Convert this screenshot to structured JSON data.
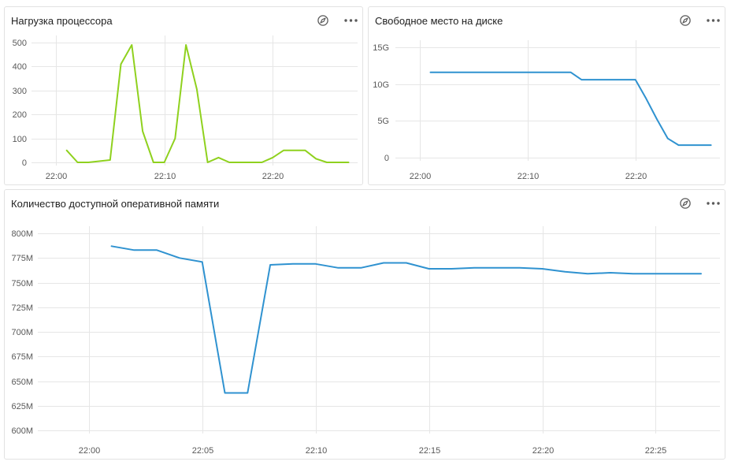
{
  "widget_header_icons": [
    "compass-icon",
    "more-icon"
  ],
  "chart_data": [
    {
      "type": "line",
      "title": "Нагрузка процессора",
      "grid": true,
      "x": [
        "22:01",
        "22:02",
        "22:03",
        "22:04",
        "22:05",
        "22:06",
        "22:07",
        "22:08",
        "22:09",
        "22:10",
        "22:11",
        "22:12",
        "22:13",
        "22:14",
        "22:15",
        "22:16",
        "22:17",
        "22:18",
        "22:19",
        "22:20",
        "22:21",
        "22:22",
        "22:23",
        "22:24",
        "22:25",
        "22:26",
        "22:27"
      ],
      "xlim": [
        "21:57:45",
        "22:27:50"
      ],
      "x_ticks": [
        "22:00",
        "22:10",
        "22:20"
      ],
      "ylim": [
        0,
        500
      ],
      "y_ticks": [
        {
          "value": 0,
          "label": "0"
        },
        {
          "value": 100,
          "label": "100"
        },
        {
          "value": 200,
          "label": "200"
        },
        {
          "value": 300,
          "label": "300"
        },
        {
          "value": 400,
          "label": "400"
        },
        {
          "value": 500,
          "label": "500"
        }
      ],
      "series": [
        {
          "color": "#8fd11e",
          "values": [
            50,
            0,
            0,
            5,
            10,
            410,
            490,
            130,
            0,
            0,
            100,
            490,
            305,
            0,
            20,
            0,
            0,
            0,
            0,
            20,
            50,
            50,
            50,
            15,
            0,
            0,
            0
          ]
        }
      ]
    },
    {
      "type": "line",
      "title": "Свободное место на диске",
      "grid": true,
      "x": [
        "22:01",
        "22:02",
        "22:03",
        "22:04",
        "22:05",
        "22:06",
        "22:07",
        "22:08",
        "22:09",
        "22:10",
        "22:11",
        "22:12",
        "22:13",
        "22:14",
        "22:15",
        "22:16",
        "22:17",
        "22:18",
        "22:19",
        "22:20",
        "22:21",
        "22:22",
        "22:23",
        "22:24",
        "22:25",
        "22:26",
        "22:27"
      ],
      "xlim": [
        "21:57:45",
        "22:27:50"
      ],
      "x_ticks": [
        "22:00",
        "22:10",
        "22:20"
      ],
      "ylim": [
        0,
        15
      ],
      "y_ticks": [
        {
          "value": 0,
          "label": "0"
        },
        {
          "value": 5,
          "label": "5G"
        },
        {
          "value": 10,
          "label": "10G"
        },
        {
          "value": 15,
          "label": "15G"
        }
      ],
      "series": [
        {
          "color": "#2f92d0",
          "values": [
            11.6,
            11.6,
            11.6,
            11.6,
            11.6,
            11.6,
            11.6,
            11.6,
            11.6,
            11.6,
            11.6,
            11.6,
            11.6,
            11.6,
            10.6,
            10.6,
            10.6,
            10.6,
            10.6,
            10.6,
            8.0,
            5.2,
            2.6,
            1.7,
            1.7,
            1.7,
            1.7
          ]
        }
      ]
    },
    {
      "type": "line",
      "title": "Количество доступной оперативной памяти",
      "grid": true,
      "x": [
        "22:01",
        "22:02",
        "22:03",
        "22:04",
        "22:05",
        "22:06",
        "22:07",
        "22:08",
        "22:09",
        "22:10",
        "22:11",
        "22:12",
        "22:13",
        "22:14",
        "22:15",
        "22:16",
        "22:17",
        "22:18",
        "22:19",
        "22:20",
        "22:21",
        "22:22",
        "22:23",
        "22:24",
        "22:25",
        "22:26",
        "22:27"
      ],
      "xlim": [
        "21:57:45",
        "22:27:50"
      ],
      "x_ticks": [
        "22:00",
        "22:05",
        "22:10",
        "22:15",
        "22:20",
        "22:25"
      ],
      "ylim": [
        600,
        800
      ],
      "y_ticks": [
        {
          "value": 600,
          "label": "600M"
        },
        {
          "value": 625,
          "label": "625M"
        },
        {
          "value": 650,
          "label": "650M"
        },
        {
          "value": 675,
          "label": "675M"
        },
        {
          "value": 700,
          "label": "700M"
        },
        {
          "value": 725,
          "label": "725M"
        },
        {
          "value": 750,
          "label": "750M"
        },
        {
          "value": 775,
          "label": "775M"
        },
        {
          "value": 800,
          "label": "800M"
        }
      ],
      "series": [
        {
          "color": "#2f92d0",
          "values": [
            787,
            783,
            783,
            775,
            771,
            638,
            638,
            768,
            769,
            769,
            765,
            765,
            770,
            770,
            764,
            764,
            765,
            765,
            765,
            764,
            761,
            759,
            760,
            759,
            759,
            759,
            759
          ]
        }
      ]
    }
  ]
}
